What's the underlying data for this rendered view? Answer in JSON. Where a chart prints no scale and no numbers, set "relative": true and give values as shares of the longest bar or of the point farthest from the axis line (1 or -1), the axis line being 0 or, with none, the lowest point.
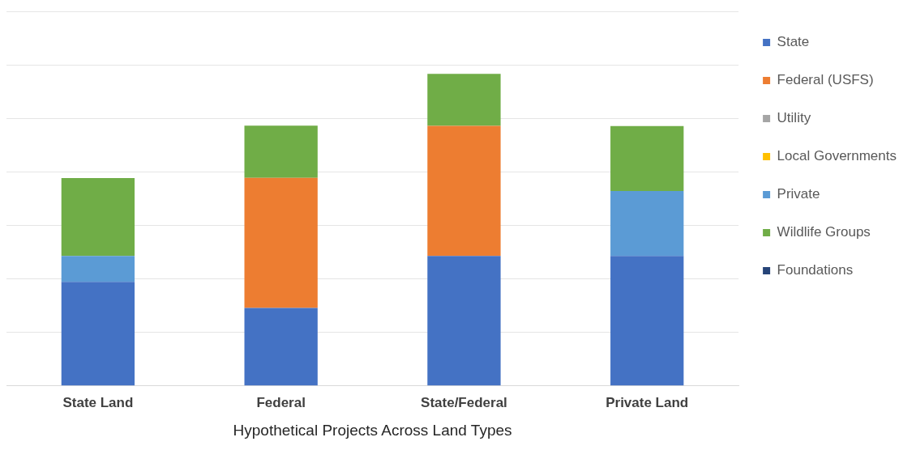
{
  "chart_data": {
    "type": "bar",
    "stacked": true,
    "relative": true,
    "xlabel": "Hypothetical Projects Across Land Types",
    "categories": [
      "State Land",
      "Federal",
      "State/Federal",
      "Private Land"
    ],
    "series": [
      {
        "name": "State",
        "color": "#4472c4",
        "values": [
          0.333,
          0.25,
          0.4165,
          0.4165
        ]
      },
      {
        "name": "Federal (USFS)",
        "color": "#ed7d31",
        "values": [
          null,
          0.4165,
          0.4165,
          null
        ]
      },
      {
        "name": "Utility",
        "color": "#a5a5a5",
        "values": [
          null,
          null,
          null,
          null
        ]
      },
      {
        "name": "Local Governments",
        "color": "#ffc000",
        "values": [
          null,
          null,
          null,
          null
        ]
      },
      {
        "name": "Private",
        "color": "#5b9bd5",
        "values": [
          0.083,
          null,
          null,
          0.208
        ]
      },
      {
        "name": "Wildlife Groups",
        "color": "#70ad47",
        "values": [
          0.25,
          0.167,
          0.167,
          0.208
        ]
      },
      {
        "name": "Foundations",
        "color": "#264478",
        "values": [
          null,
          null,
          null,
          null
        ]
      }
    ],
    "grid": "y",
    "legend": "right"
  }
}
